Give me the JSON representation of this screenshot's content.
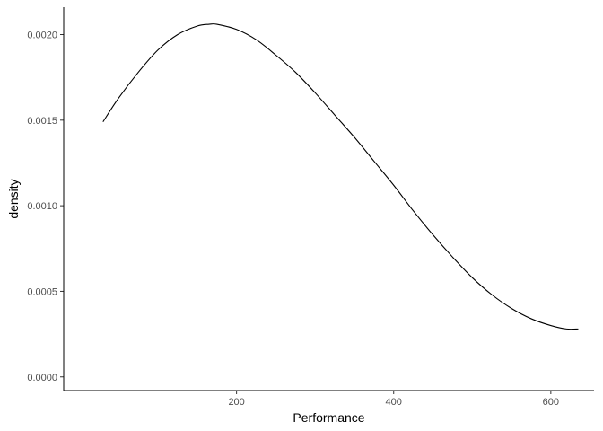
{
  "chart_data": {
    "type": "line",
    "title": "",
    "xlabel": "Performance",
    "ylabel": "density",
    "xlim": [
      -20,
      655
    ],
    "ylim": [
      -8e-05,
      0.00216
    ],
    "x_ticks": [
      200,
      400,
      600
    ],
    "y_ticks": [
      0.0,
      0.0005,
      0.001,
      0.0015,
      0.002
    ],
    "x_tick_labels": [
      "200",
      "400",
      "600"
    ],
    "y_tick_labels": [
      "0.0000",
      "0.0005",
      "0.0010",
      "0.0015",
      "0.0020"
    ],
    "grid": false,
    "legend": "none",
    "line_color": "#000000",
    "series": [
      {
        "x": [
          30,
          50,
          75,
          100,
          125,
          150,
          165,
          175,
          200,
          225,
          250,
          275,
          300,
          325,
          350,
          375,
          400,
          425,
          450,
          475,
          500,
          525,
          550,
          575,
          600,
          620,
          635
        ],
        "values": [
          0.00149,
          0.00163,
          0.00178,
          0.00191,
          0.002,
          0.00205,
          0.00206,
          0.00206,
          0.00203,
          0.00197,
          0.00188,
          0.00178,
          0.00166,
          0.00153,
          0.0014,
          0.00126,
          0.00112,
          0.00097,
          0.00083,
          0.0007,
          0.00058,
          0.00048,
          0.0004,
          0.00034,
          0.0003,
          0.00028,
          0.00028
        ]
      }
    ]
  }
}
